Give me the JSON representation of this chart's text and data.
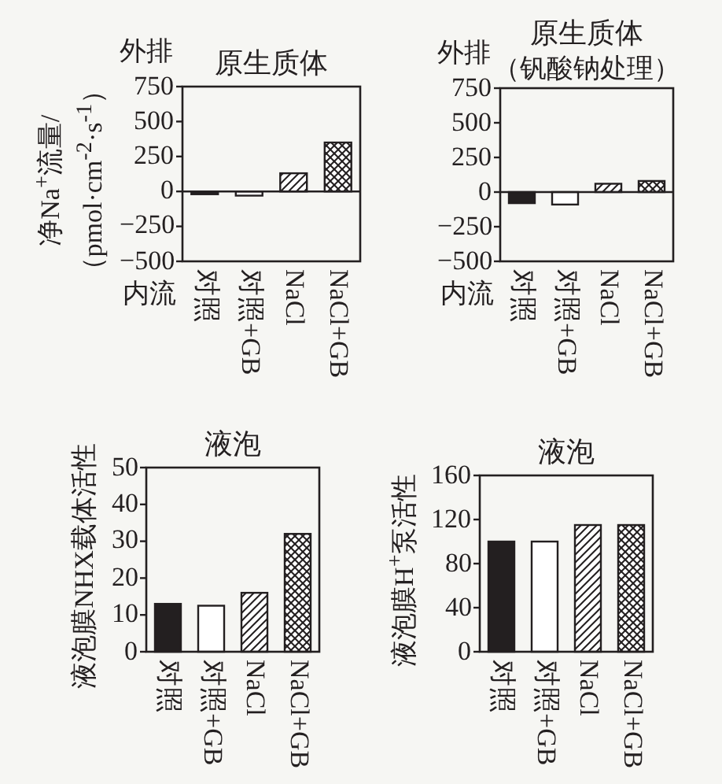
{
  "chart_data": [
    {
      "type": "bar",
      "title": "原生质体",
      "ylabel": "净Na$^{+}$流量/（pmol·cm$^{-2}$·s$^{-1}$）",
      "annotations": [
        "外排",
        "内流"
      ],
      "categories": [
        "对照",
        "对照+GB",
        "NaCl",
        "NaCl+GB"
      ],
      "values": [
        -20,
        -30,
        130,
        350
      ],
      "colors": [
        "#231f20",
        "#ffffff",
        "#231f20",
        "#231f20"
      ],
      "ylim": [
        -500,
        750
      ],
      "yticks": [
        -500,
        -250,
        0,
        250,
        500,
        750
      ]
    },
    {
      "type": "bar",
      "title": "原生质体",
      "subtitle": "（钒酸钠处理）",
      "annotations": [
        "外排",
        "内流"
      ],
      "categories": [
        "对照",
        "对照+GB",
        "NaCl",
        "NaCl+GB"
      ],
      "values": [
        -80,
        -90,
        60,
        80
      ],
      "colors": [
        "#231f20",
        "#ffffff",
        "#231f20",
        "#231f20"
      ],
      "ylim": [
        -500,
        750
      ],
      "yticks": [
        -500,
        -250,
        0,
        250,
        500,
        750
      ]
    },
    {
      "type": "bar",
      "title": "液泡",
      "ylabel": "液泡膜NHX载体活性",
      "categories": [
        "对照",
        "对照+GB",
        "NaCl",
        "NaCl+GB"
      ],
      "values": [
        13,
        12.5,
        16,
        32
      ],
      "colors": [
        "#231f20",
        "#ffffff",
        "#231f20",
        "#231f20"
      ],
      "ylim": [
        0,
        50
      ],
      "yticks": [
        0,
        10,
        20,
        30,
        40,
        50
      ]
    },
    {
      "type": "bar",
      "title": "液泡",
      "ylabel": "液泡膜H$^{+}$泵活性",
      "categories": [
        "对照",
        "对照+GB",
        "NaCl",
        "NaCl+GB"
      ],
      "values": [
        100,
        100,
        115,
        115
      ],
      "colors": [
        "#231f20",
        "#ffffff",
        "#231f20",
        "#231f20"
      ],
      "ylim": [
        0,
        160
      ],
      "yticks": [
        0,
        40,
        80,
        120,
        160
      ]
    }
  ]
}
